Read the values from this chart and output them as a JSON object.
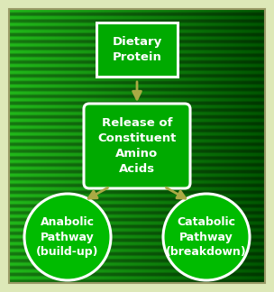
{
  "fig_width": 3.04,
  "fig_height": 3.24,
  "dpi": 100,
  "bg_outer": "#dde8b8",
  "panel_color_left": "#22bb22",
  "panel_color_right": "#005500",
  "stripe_dark": "#006600",
  "stripe_light": "#00aa00",
  "box_fill": "#00aa00",
  "box_border": "#ffffff",
  "circle_fill": "#00bb00",
  "circle_border": "#ffffff",
  "arrow_color": "#aaaa44",
  "text_color": "#ffffff",
  "node1_text": "Dietary\nProtein",
  "node2_text": "Release of\nConstituent\nAmino\nAcids",
  "node3_text": "Anabolic\nPathway\n(build-up)",
  "node4_text": "Catabolic\nPathway\n(breakdown)",
  "font_size_main": 9.5,
  "font_size_circle": 9.0,
  "font_weight": "bold"
}
